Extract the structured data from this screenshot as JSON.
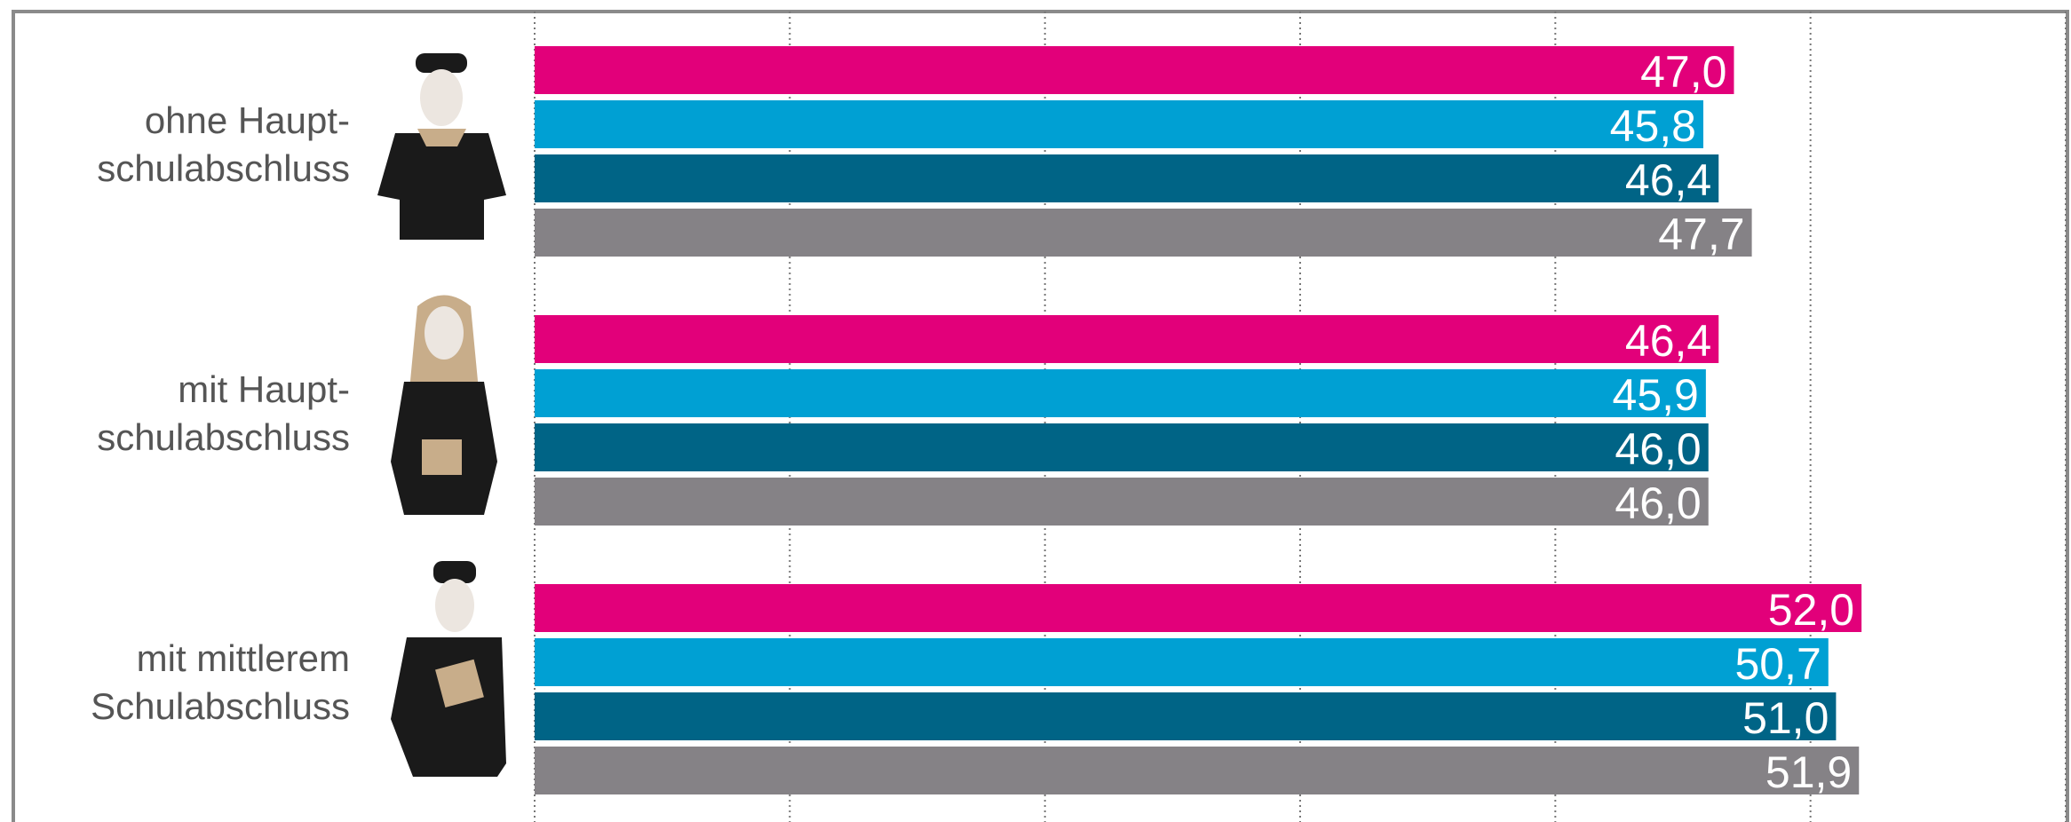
{
  "chart_data": {
    "type": "bar",
    "orientation": "horizontal",
    "categories": [
      "ohne Haupt-\nschulabschluss",
      "mit Haupt-\nschulabschluss",
      "mit mittlerem\nSchulabschluss"
    ],
    "series": [
      {
        "color": "#e2007a",
        "values": [
          47.0,
          46.4,
          52.0
        ],
        "value_labels": [
          "47,0",
          "46,4",
          "52,0"
        ]
      },
      {
        "color": "#00a0d3",
        "values": [
          45.8,
          45.9,
          50.7
        ],
        "value_labels": [
          "45,8",
          "45,9",
          "50,7"
        ]
      },
      {
        "color": "#006486",
        "values": [
          46.4,
          46.0,
          51.0
        ],
        "value_labels": [
          "46,4",
          "46,0",
          "51,0"
        ]
      },
      {
        "color": "#858286",
        "values": [
          47.7,
          46.0,
          51.9
        ],
        "value_labels": [
          "47,7",
          "46,0",
          "51,9"
        ]
      }
    ],
    "xlim": [
      0,
      60
    ],
    "xticks": [
      0,
      10,
      20,
      30,
      40,
      50,
      60
    ],
    "grid": true
  }
}
